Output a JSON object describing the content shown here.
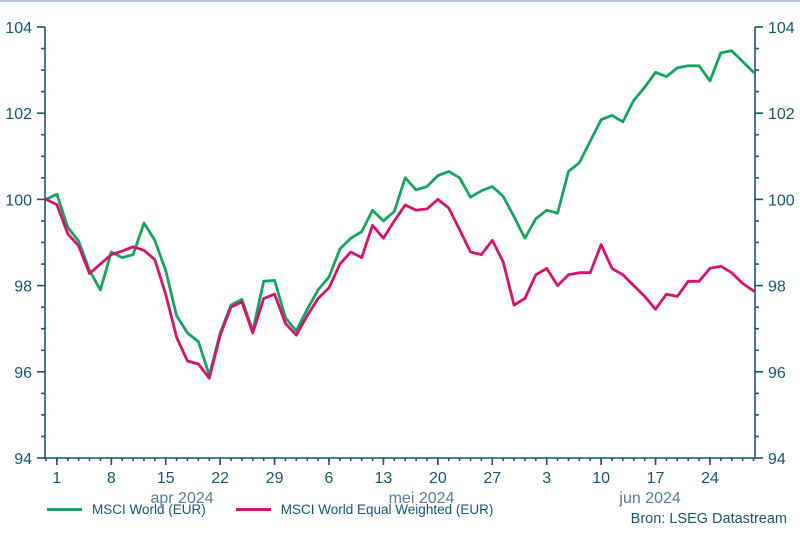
{
  "chart_data": {
    "type": "line",
    "title": "",
    "xlabel": "",
    "ylabel": "",
    "ylim": [
      94,
      104
    ],
    "y_major_ticks": [
      94,
      96,
      98,
      100,
      102,
      104
    ],
    "y_minor_step": 0.5,
    "grid": false,
    "legend_position": "bottom-left",
    "dates": [
      "2024-03-29",
      "2024-04-01",
      "2024-04-02",
      "2024-04-03",
      "2024-04-04",
      "2024-04-05",
      "2024-04-08",
      "2024-04-09",
      "2024-04-10",
      "2024-04-11",
      "2024-04-12",
      "2024-04-15",
      "2024-04-16",
      "2024-04-17",
      "2024-04-18",
      "2024-04-19",
      "2024-04-22",
      "2024-04-23",
      "2024-04-24",
      "2024-04-25",
      "2024-04-26",
      "2024-04-29",
      "2024-04-30",
      "2024-05-01",
      "2024-05-02",
      "2024-05-03",
      "2024-05-06",
      "2024-05-07",
      "2024-05-08",
      "2024-05-09",
      "2024-05-10",
      "2024-05-13",
      "2024-05-14",
      "2024-05-15",
      "2024-05-16",
      "2024-05-17",
      "2024-05-20",
      "2024-05-21",
      "2024-05-22",
      "2024-05-23",
      "2024-05-24",
      "2024-05-27",
      "2024-05-28",
      "2024-05-29",
      "2024-05-30",
      "2024-05-31",
      "2024-06-03",
      "2024-06-04",
      "2024-06-05",
      "2024-06-06",
      "2024-06-07",
      "2024-06-10",
      "2024-06-11",
      "2024-06-12",
      "2024-06-13",
      "2024-06-14",
      "2024-06-17",
      "2024-06-18",
      "2024-06-19",
      "2024-06-20",
      "2024-06-21",
      "2024-06-24",
      "2024-06-25",
      "2024-06-26",
      "2024-06-27",
      "2024-06-28"
    ],
    "x_major_ticks": [
      {
        "index": 1,
        "label": "1"
      },
      {
        "index": 6,
        "label": "8"
      },
      {
        "index": 11,
        "label": "15"
      },
      {
        "index": 16,
        "label": "22"
      },
      {
        "index": 21,
        "label": "29"
      },
      {
        "index": 26,
        "label": "6"
      },
      {
        "index": 31,
        "label": "13"
      },
      {
        "index": 36,
        "label": "20"
      },
      {
        "index": 41,
        "label": "27"
      },
      {
        "index": 46,
        "label": "3"
      },
      {
        "index": 51,
        "label": "10"
      },
      {
        "index": 56,
        "label": "17"
      },
      {
        "index": 61,
        "label": "24"
      }
    ],
    "month_labels": [
      {
        "label": "apr 2024",
        "center_index": 12.5
      },
      {
        "label": "mei 2024",
        "center_index": 34.5
      },
      {
        "label": "jun 2024",
        "center_index": 55.5
      }
    ],
    "series": [
      {
        "name": "MSCI World (EUR)",
        "color": "#16a35f",
        "values": [
          100.0,
          100.12,
          99.35,
          99.03,
          98.35,
          97.9,
          98.78,
          98.65,
          98.72,
          99.45,
          99.05,
          98.35,
          97.3,
          96.9,
          96.7,
          95.92,
          96.9,
          97.55,
          97.68,
          96.95,
          98.1,
          98.12,
          97.25,
          96.95,
          97.45,
          97.9,
          98.2,
          98.85,
          99.1,
          99.25,
          99.75,
          99.5,
          99.72,
          100.5,
          100.22,
          100.3,
          100.55,
          100.65,
          100.5,
          100.05,
          100.2,
          100.3,
          100.07,
          99.6,
          99.1,
          99.55,
          99.75,
          99.68,
          100.65,
          100.85,
          101.35,
          101.85,
          101.95,
          101.8,
          102.3,
          102.6,
          102.95,
          102.85,
          103.05,
          103.1,
          103.1,
          102.75,
          103.4,
          103.45,
          103.2,
          102.95
        ]
      },
      {
        "name": "MSCI World Equal Weighted (EUR)",
        "color": "#d2146e",
        "values": [
          100.0,
          99.88,
          99.2,
          98.92,
          98.28,
          98.5,
          98.72,
          98.8,
          98.9,
          98.82,
          98.6,
          97.8,
          96.8,
          96.25,
          96.18,
          95.85,
          96.85,
          97.5,
          97.62,
          96.9,
          97.7,
          97.8,
          97.12,
          96.85,
          97.3,
          97.7,
          97.95,
          98.5,
          98.78,
          98.65,
          99.4,
          99.1,
          99.5,
          99.87,
          99.75,
          99.78,
          100.0,
          99.8,
          99.3,
          98.78,
          98.72,
          99.05,
          98.55,
          97.55,
          97.7,
          98.25,
          98.4,
          98.0,
          98.25,
          98.3,
          98.3,
          98.95,
          98.4,
          98.25,
          98.0,
          97.75,
          97.45,
          97.8,
          97.75,
          98.1,
          98.1,
          98.4,
          98.45,
          98.3,
          98.05,
          97.88
        ]
      }
    ],
    "colors": {
      "axis": "#19566c",
      "tick_label": "#19566c",
      "month_label": "#53808f",
      "top_border": "#b9c5da"
    }
  },
  "footer": {
    "source": "Bron: LSEG Datastream"
  }
}
